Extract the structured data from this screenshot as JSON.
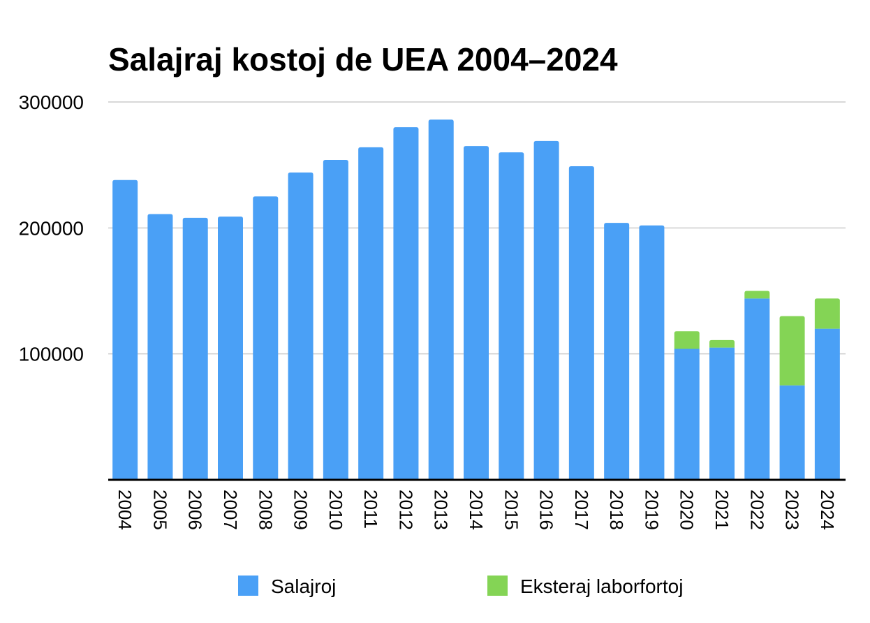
{
  "chart_data": {
    "type": "bar",
    "stacked": true,
    "title": "Salajraj kostoj de UEA 2004–2024",
    "xlabel": "",
    "ylabel": "",
    "ylim": [
      0,
      300000
    ],
    "yticks": [
      100000,
      200000,
      300000
    ],
    "grid": true,
    "legend_position": "bottom",
    "categories": [
      "2004",
      "2005",
      "2006",
      "2007",
      "2008",
      "2009",
      "2010",
      "2011",
      "2012",
      "2013",
      "2014",
      "2015",
      "2016",
      "2017",
      "2018",
      "2019",
      "2020",
      "2021",
      "2022",
      "2023",
      "2024"
    ],
    "series": [
      {
        "name": "Salajroj",
        "color": "#4aa0f6",
        "values": [
          238000,
          211000,
          208000,
          209000,
          225000,
          244000,
          254000,
          264000,
          280000,
          286000,
          265000,
          260000,
          269000,
          249000,
          204000,
          202000,
          104000,
          105000,
          144000,
          75000,
          120000
        ]
      },
      {
        "name": "Eksteraj laborfortoj",
        "color": "#84d455",
        "values": [
          0,
          0,
          0,
          0,
          0,
          0,
          0,
          0,
          0,
          0,
          0,
          0,
          0,
          0,
          0,
          0,
          14000,
          6000,
          6000,
          55000,
          24000
        ]
      }
    ]
  }
}
